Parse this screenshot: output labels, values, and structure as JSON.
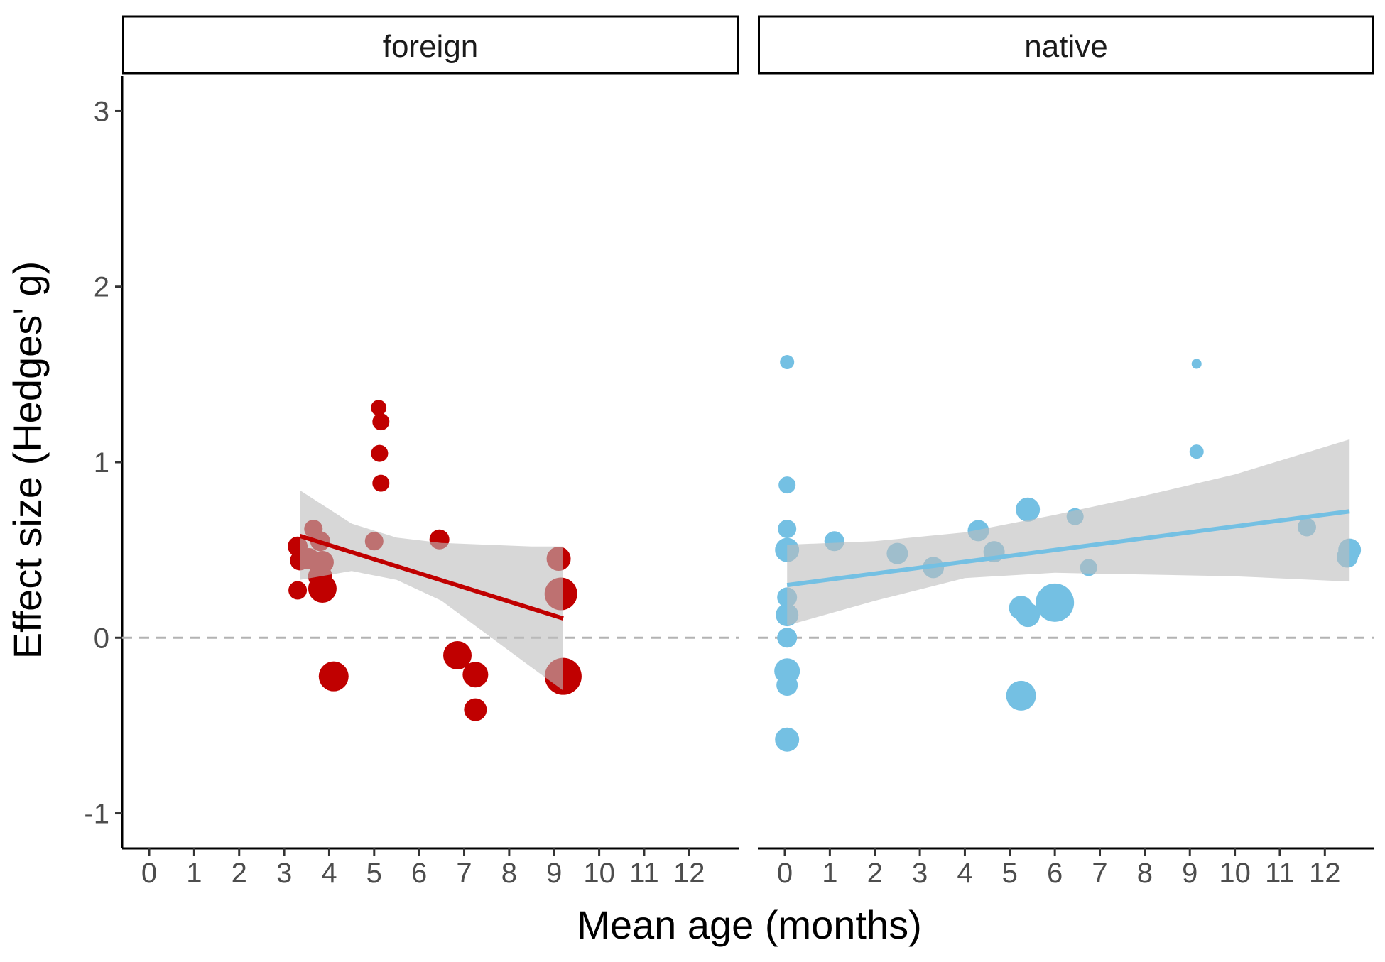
{
  "chart_data": {
    "type": "scatter",
    "xlabel": "Mean age (months)",
    "ylabel": "Effect size (Hedges' g)",
    "ylim": [
      -1.2,
      3.2
    ],
    "yticks": [
      -1,
      0,
      1,
      2,
      3
    ],
    "ytick_labels": [
      "-1",
      "0",
      "1",
      "2",
      "3"
    ],
    "xlim": [
      -0.6,
      13.1
    ],
    "xticks": [
      0,
      1,
      2,
      3,
      4,
      5,
      6,
      7,
      8,
      9,
      10,
      11,
      12
    ],
    "xtick_labels": [
      "0",
      "1",
      "2",
      "3",
      "4",
      "5",
      "6",
      "7",
      "8",
      "9",
      "10",
      "11",
      "12"
    ],
    "reference_line": {
      "y": 0,
      "style": "dashed",
      "color": "#b3b3b3"
    },
    "grid": false,
    "panels": [
      {
        "label": "foreign",
        "color": "#c00000",
        "ribbon_color": "#bdbdbd",
        "regression": {
          "x": [
            3.35,
            9.2
          ],
          "y": [
            0.58,
            0.11
          ]
        },
        "ribbon": {
          "x": [
            3.35,
            4.5,
            5.5,
            6.5,
            7.5,
            8.5,
            9.2
          ],
          "upper": [
            0.84,
            0.65,
            0.57,
            0.54,
            0.53,
            0.52,
            0.52
          ],
          "lower": [
            0.33,
            0.38,
            0.33,
            0.21,
            0.02,
            -0.17,
            -0.3
          ]
        },
        "points": [
          {
            "x": 5.1,
            "y": 1.31,
            "size": 11
          },
          {
            "x": 5.15,
            "y": 1.23,
            "size": 12
          },
          {
            "x": 5.12,
            "y": 1.05,
            "size": 12
          },
          {
            "x": 5.15,
            "y": 0.88,
            "size": 12
          },
          {
            "x": 3.3,
            "y": 0.52,
            "size": 14
          },
          {
            "x": 3.35,
            "y": 0.44,
            "size": 14
          },
          {
            "x": 3.65,
            "y": 0.62,
            "size": 13
          },
          {
            "x": 3.8,
            "y": 0.55,
            "size": 14
          },
          {
            "x": 3.55,
            "y": 0.45,
            "size": 15
          },
          {
            "x": 3.85,
            "y": 0.43,
            "size": 16
          },
          {
            "x": 3.8,
            "y": 0.35,
            "size": 17
          },
          {
            "x": 3.3,
            "y": 0.27,
            "size": 13
          },
          {
            "x": 3.85,
            "y": 0.28,
            "size": 20
          },
          {
            "x": 5.0,
            "y": 0.55,
            "size": 13
          },
          {
            "x": 6.45,
            "y": 0.56,
            "size": 14
          },
          {
            "x": 9.1,
            "y": 0.45,
            "size": 17
          },
          {
            "x": 9.15,
            "y": 0.25,
            "size": 23
          },
          {
            "x": 9.2,
            "y": -0.22,
            "size": 26
          },
          {
            "x": 4.1,
            "y": -0.22,
            "size": 21
          },
          {
            "x": 6.85,
            "y": -0.1,
            "size": 20
          },
          {
            "x": 7.25,
            "y": -0.21,
            "size": 18
          },
          {
            "x": 7.25,
            "y": -0.41,
            "size": 16
          }
        ]
      },
      {
        "label": "native",
        "color": "#74c0e3",
        "ribbon_color": "#bdbdbd",
        "regression": {
          "x": [
            0.05,
            12.55
          ],
          "y": [
            0.3,
            0.72
          ]
        },
        "ribbon": {
          "x": [
            0.05,
            2,
            4,
            6,
            8,
            10,
            12.55
          ],
          "upper": [
            0.53,
            0.55,
            0.6,
            0.7,
            0.81,
            0.93,
            1.13
          ],
          "lower": [
            0.07,
            0.21,
            0.34,
            0.37,
            0.36,
            0.35,
            0.32
          ]
        },
        "points": [
          {
            "x": 0.05,
            "y": 1.57,
            "size": 10
          },
          {
            "x": 0.05,
            "y": 0.87,
            "size": 12
          },
          {
            "x": 0.05,
            "y": 0.62,
            "size": 13
          },
          {
            "x": 0.05,
            "y": 0.5,
            "size": 17
          },
          {
            "x": 0.05,
            "y": 0.23,
            "size": 14
          },
          {
            "x": 0.05,
            "y": 0.13,
            "size": 16
          },
          {
            "x": 0.05,
            "y": 0.0,
            "size": 14
          },
          {
            "x": 0.05,
            "y": -0.19,
            "size": 18
          },
          {
            "x": 0.05,
            "y": -0.27,
            "size": 15
          },
          {
            "x": 0.05,
            "y": -0.58,
            "size": 17
          },
          {
            "x": 1.1,
            "y": 0.55,
            "size": 14
          },
          {
            "x": 2.5,
            "y": 0.48,
            "size": 15
          },
          {
            "x": 3.3,
            "y": 0.4,
            "size": 15
          },
          {
            "x": 4.3,
            "y": 0.61,
            "size": 15
          },
          {
            "x": 4.65,
            "y": 0.49,
            "size": 15
          },
          {
            "x": 5.4,
            "y": 0.73,
            "size": 17
          },
          {
            "x": 5.25,
            "y": 0.17,
            "size": 17
          },
          {
            "x": 5.4,
            "y": 0.13,
            "size": 17
          },
          {
            "x": 6.0,
            "y": 0.2,
            "size": 27
          },
          {
            "x": 6.45,
            "y": 0.69,
            "size": 12
          },
          {
            "x": 6.75,
            "y": 0.4,
            "size": 12
          },
          {
            "x": 5.25,
            "y": -0.33,
            "size": 21
          },
          {
            "x": 9.15,
            "y": 1.56,
            "size": 7
          },
          {
            "x": 9.15,
            "y": 1.06,
            "size": 10
          },
          {
            "x": 11.6,
            "y": 0.63,
            "size": 13
          },
          {
            "x": 12.55,
            "y": 0.5,
            "size": 16
          },
          {
            "x": 12.5,
            "y": 0.46,
            "size": 15
          }
        ]
      }
    ]
  }
}
